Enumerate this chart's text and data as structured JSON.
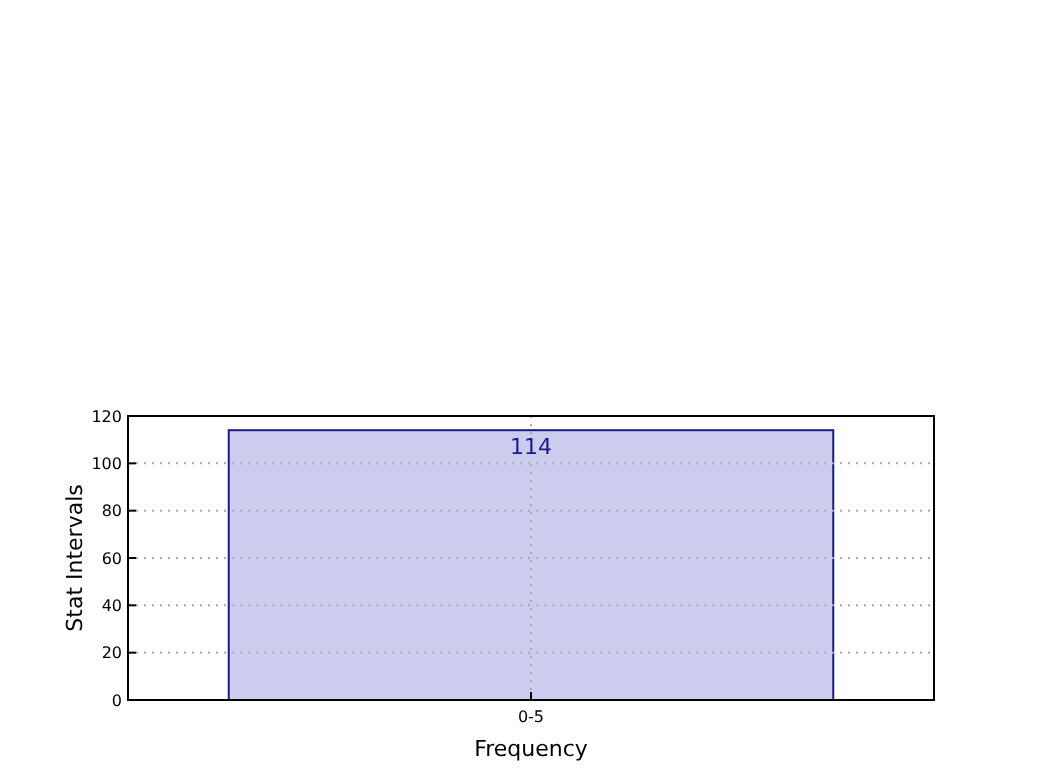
{
  "chart_data": {
    "type": "bar",
    "xlabel": "Frequency",
    "ylabel": "Stat Intervals",
    "categories": [
      "0-5"
    ],
    "values": [
      114
    ],
    "color": "#ccccee",
    "ylim": [
      0,
      120
    ],
    "yticks": [
      0,
      20,
      40,
      60,
      80,
      100,
      120
    ],
    "grid": true,
    "data_labels": true
  }
}
